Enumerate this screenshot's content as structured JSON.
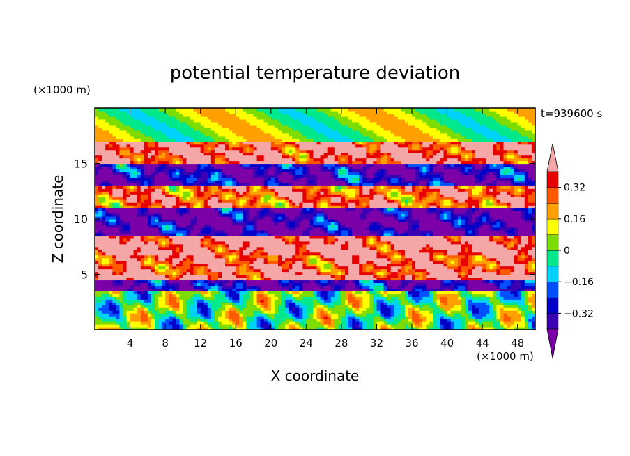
{
  "chart_data": {
    "type": "heatmap",
    "title": "potential temperature deviation",
    "time_label": "t=939600 s",
    "xlabel": "X coordinate",
    "ylabel": "Z coordinate",
    "x_unit": "(×1000 m)",
    "y_unit": "(×1000 m)",
    "xlim": [
      0,
      50
    ],
    "ylim": [
      0,
      20
    ],
    "x_ticks": [
      4,
      8,
      12,
      16,
      20,
      24,
      28,
      32,
      36,
      40,
      44,
      48
    ],
    "y_ticks": [
      5,
      10,
      15
    ],
    "colorbar": {
      "labels": [
        "0.32",
        "0.16",
        "0",
        "−0.16",
        "−0.32"
      ],
      "label_values": [
        0.32,
        0.16,
        0,
        -0.16,
        -0.32
      ],
      "levels": [
        -0.4,
        -0.32,
        -0.24,
        -0.16,
        -0.08,
        0,
        0.08,
        0.16,
        0.24,
        0.32,
        0.4
      ],
      "colors": [
        "#7b00a8",
        "#3c00b4",
        "#0000c8",
        "#0050ff",
        "#00d2ff",
        "#00e88c",
        "#7ddc00",
        "#ffff00",
        "#ffa000",
        "#ff5a00",
        "#e60000",
        "#f5a7a7"
      ],
      "extend": "both"
    },
    "bands": [
      {
        "z": [
          0,
          3.5
        ],
        "value": 0.0
      },
      {
        "z": [
          3.5,
          4.5
        ],
        "value": -0.36
      },
      {
        "z": [
          4.5,
          5.0
        ],
        "value": 0.45
      },
      {
        "z": [
          5.0,
          6.8
        ],
        "value": 0.36
      },
      {
        "z": [
          6.8,
          8.5
        ],
        "value": 0.45
      },
      {
        "z": [
          8.5,
          11.0
        ],
        "value": -0.4
      },
      {
        "z": [
          11.0,
          13.0
        ],
        "value": 0.3
      },
      {
        "z": [
          13.0,
          15.0
        ],
        "value": -0.36
      },
      {
        "z": [
          15.0,
          17.0
        ],
        "value": 0.4
      },
      {
        "z": [
          17.0,
          20.0
        ],
        "value": 0.06
      }
    ]
  }
}
